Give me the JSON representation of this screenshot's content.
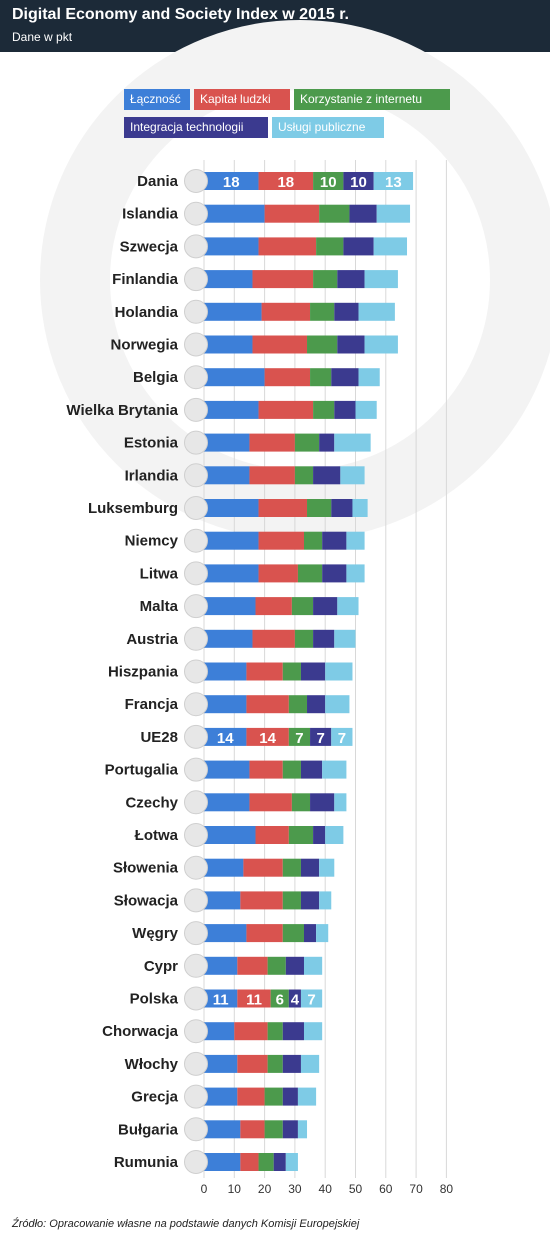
{
  "header": {
    "title": "Digital Economy and Society Index w 2015 r.",
    "subtitle": "Dane w pkt"
  },
  "legend": [
    {
      "label": "Łączność",
      "color": "#3d7fd8"
    },
    {
      "label": "Kapitał ludzki",
      "color": "#d9534f"
    },
    {
      "label": "Korzystanie z internetu",
      "color": "#4c9a4c"
    },
    {
      "label": "Integracja technologii",
      "color": "#3b3a8f"
    },
    {
      "label": "Usługi publiczne",
      "color": "#7ecbe6"
    }
  ],
  "source": "Źródło: Opracowanie własne na podstawie danych Komisji Europejskiej",
  "chart_data": {
    "type": "bar",
    "orientation": "horizontal",
    "stacked": true,
    "xlim": [
      0,
      80
    ],
    "xticks": [
      "0",
      "10",
      "20",
      "30",
      "40",
      "50",
      "60",
      "70",
      "80"
    ],
    "grid": true,
    "categories": [
      "Dania",
      "Islandia",
      "Szwecja",
      "Finlandia",
      "Holandia",
      "Norwegia",
      "Belgia",
      "Wielka Brytania",
      "Estonia",
      "Irlandia",
      "Luksemburg",
      "Niemcy",
      "Litwa",
      "Malta",
      "Austria",
      "Hiszpania",
      "Francja",
      "UE28",
      "Portugalia",
      "Czechy",
      "Łotwa",
      "Słowenia",
      "Słowacja",
      "Węgry",
      "Cypr",
      "Polska",
      "Chorwacja",
      "Włochy",
      "Grecja",
      "Bułgaria",
      "Rumunia"
    ],
    "series": [
      {
        "name": "Łączność",
        "color": "#3d7fd8",
        "values": [
          18,
          20,
          18,
          16,
          19,
          16,
          20,
          18,
          15,
          15,
          18,
          18,
          18,
          17,
          16,
          14,
          14,
          14,
          15,
          15,
          17,
          13,
          12,
          14,
          11,
          11,
          10,
          11,
          11,
          12,
          12
        ]
      },
      {
        "name": "Kapitał ludzki",
        "color": "#d9534f",
        "values": [
          18,
          18,
          19,
          20,
          16,
          18,
          15,
          18,
          15,
          15,
          16,
          15,
          13,
          12,
          14,
          12,
          14,
          14,
          11,
          14,
          11,
          13,
          14,
          12,
          10,
          11,
          11,
          10,
          9,
          8,
          6
        ]
      },
      {
        "name": "Korzystanie z internetu",
        "color": "#4c9a4c",
        "values": [
          10,
          10,
          9,
          8,
          8,
          10,
          7,
          7,
          8,
          6,
          8,
          6,
          8,
          7,
          6,
          6,
          6,
          7,
          6,
          6,
          8,
          6,
          6,
          7,
          6,
          6,
          5,
          5,
          6,
          6,
          5
        ]
      },
      {
        "name": "Integracja technologii",
        "color": "#3b3a8f",
        "values": [
          10,
          9,
          10,
          9,
          8,
          9,
          9,
          7,
          5,
          9,
          7,
          8,
          8,
          8,
          7,
          8,
          6,
          7,
          7,
          8,
          4,
          6,
          6,
          4,
          6,
          4,
          7,
          6,
          5,
          5,
          4
        ]
      },
      {
        "name": "Usługi publiczne",
        "color": "#7ecbe6",
        "values": [
          13,
          11,
          11,
          11,
          12,
          11,
          7,
          7,
          12,
          8,
          5,
          6,
          6,
          7,
          7,
          9,
          8,
          7,
          8,
          4,
          6,
          5,
          4,
          4,
          6,
          7,
          6,
          6,
          6,
          3,
          4
        ]
      }
    ],
    "labeled_rows": [
      "Dania",
      "UE28",
      "Polska"
    ]
  }
}
